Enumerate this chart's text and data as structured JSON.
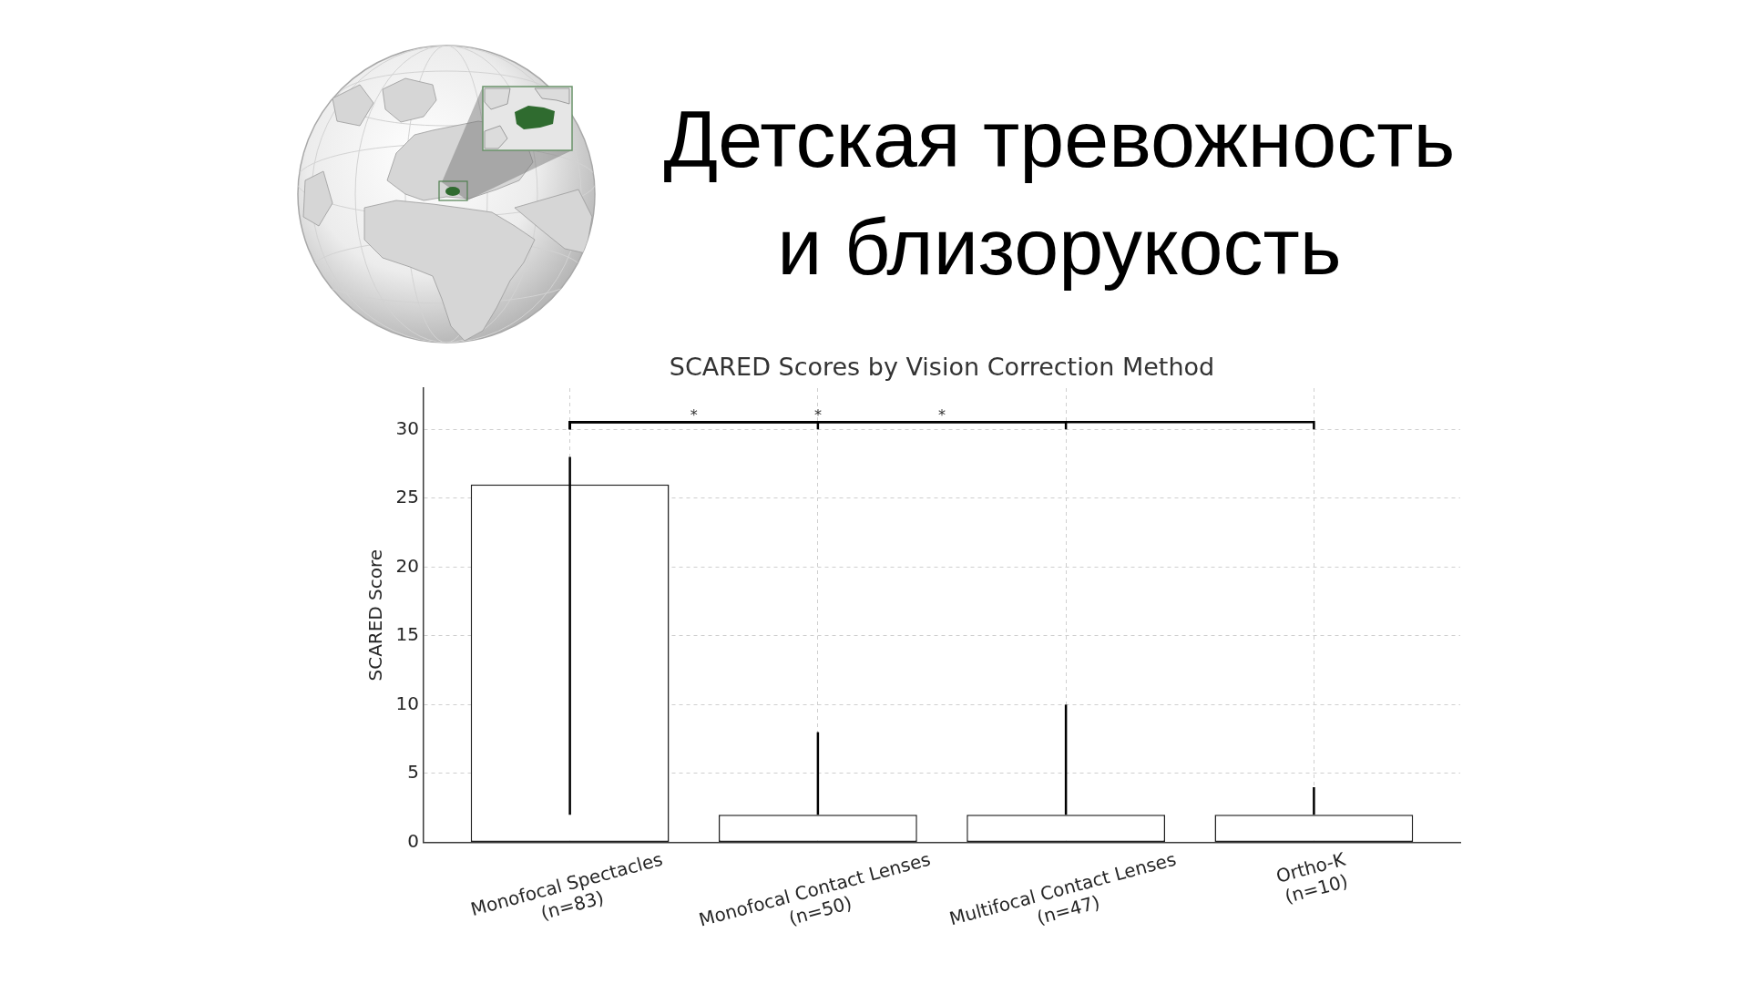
{
  "chart_data": {
    "type": "bar",
    "title": "Детская тревожность и близорукость",
    "subtitle": "SCARED Scores by Vision Correction Method",
    "ylabel": "SCARED Score",
    "categories": [
      "Monofocal Spectacles\n(n=83)",
      "Monofocal Contact Lenses\n(n=50)",
      "Multifocal Contact Lenses\n(n=47)",
      "Ortho-K\n(n=10)"
    ],
    "values": [
      26,
      2,
      2,
      2
    ],
    "errors": [
      [
        2,
        28
      ],
      [
        2,
        8
      ],
      [
        2,
        10
      ],
      [
        2,
        4
      ]
    ],
    "color": "#ffffff",
    "ylim": [
      0,
      33
    ],
    "yticks": [
      0,
      5,
      10,
      15,
      20,
      25,
      30
    ],
    "grid": true,
    "annotations": [
      "*",
      "*",
      "*"
    ]
  }
}
